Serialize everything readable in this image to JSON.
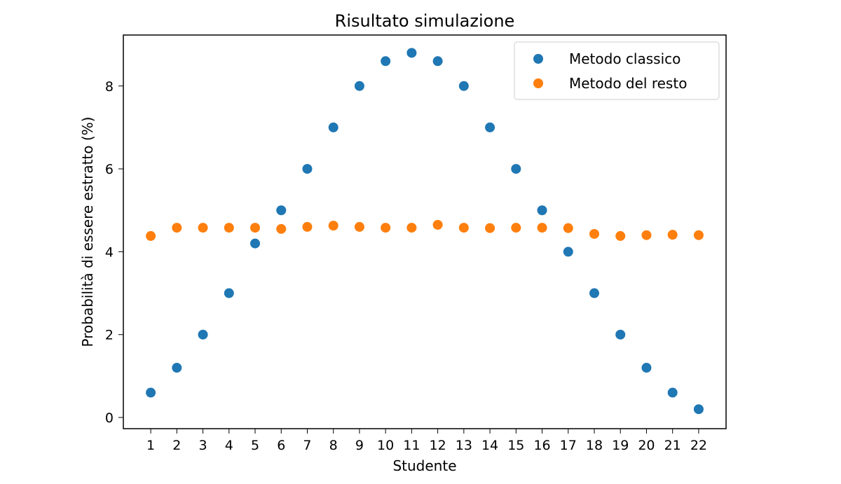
{
  "chart_data": {
    "type": "scatter",
    "title": "Risultato simulazione",
    "xlabel": "Studente",
    "ylabel": "Probabilità di essere estratto (%)",
    "x": [
      1,
      2,
      3,
      4,
      5,
      6,
      7,
      8,
      9,
      10,
      11,
      12,
      13,
      14,
      15,
      16,
      17,
      18,
      19,
      20,
      21,
      22
    ],
    "xticks": [
      "1",
      "2",
      "3",
      "4",
      "5",
      "6",
      "7",
      "8",
      "9",
      "10",
      "11",
      "12",
      "13",
      "14",
      "15",
      "16",
      "17",
      "18",
      "19",
      "20",
      "21",
      "22"
    ],
    "yticks": [
      "0",
      "2",
      "4",
      "6",
      "8"
    ],
    "xlim": [
      -0.05,
      23.05
    ],
    "ylim": [
      -0.27,
      9.23
    ],
    "grid": false,
    "legend_position": "top-right",
    "series": [
      {
        "name": "Metodo classico",
        "color": "#1f77b4",
        "values": [
          0.6,
          1.2,
          2.0,
          3.0,
          4.2,
          5.0,
          6.0,
          7.0,
          8.0,
          8.6,
          8.8,
          8.6,
          8.0,
          7.0,
          6.0,
          5.0,
          4.0,
          3.0,
          2.0,
          1.2,
          0.6,
          0.2
        ]
      },
      {
        "name": "Metodo del resto",
        "color": "#ff7f0e",
        "values": [
          4.38,
          4.58,
          4.58,
          4.58,
          4.58,
          4.55,
          4.6,
          4.63,
          4.6,
          4.58,
          4.58,
          4.65,
          4.58,
          4.57,
          4.58,
          4.58,
          4.57,
          4.43,
          4.38,
          4.4,
          4.41,
          4.4
        ]
      }
    ]
  }
}
